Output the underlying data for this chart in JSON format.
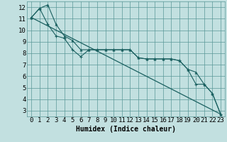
{
  "xlabel": "Humidex (Indice chaleur)",
  "bg_color": "#c2e0e0",
  "grid_color": "#5a9898",
  "line_color": "#1a6060",
  "xlim": [
    -0.5,
    23.5
  ],
  "ylim": [
    2.5,
    12.5
  ],
  "yticks": [
    3,
    4,
    5,
    6,
    7,
    8,
    9,
    10,
    11,
    12
  ],
  "xticks": [
    0,
    1,
    2,
    3,
    4,
    5,
    6,
    7,
    8,
    9,
    10,
    11,
    12,
    13,
    14,
    15,
    16,
    17,
    18,
    19,
    20,
    21,
    22,
    23
  ],
  "line1_x": [
    0,
    1,
    2,
    3,
    4,
    5,
    6,
    7,
    8,
    9,
    10,
    11,
    12,
    13,
    14,
    15,
    16,
    17,
    18,
    19,
    20,
    21,
    22,
    23
  ],
  "line1_y": [
    11.1,
    11.9,
    12.2,
    10.5,
    9.5,
    9.1,
    8.3,
    8.3,
    8.3,
    8.3,
    8.3,
    8.3,
    8.3,
    7.6,
    7.5,
    7.5,
    7.5,
    7.5,
    7.35,
    6.6,
    6.35,
    5.3,
    4.5,
    2.7
  ],
  "line2_x": [
    0,
    1,
    2,
    3,
    4,
    5,
    6,
    7,
    8,
    9,
    10,
    11,
    12,
    13,
    14,
    15,
    16,
    17,
    18,
    19,
    20,
    21,
    22,
    23
  ],
  "line2_y": [
    11.1,
    11.9,
    10.5,
    9.5,
    9.3,
    8.3,
    7.7,
    8.3,
    8.3,
    8.3,
    8.3,
    8.3,
    8.3,
    7.6,
    7.5,
    7.5,
    7.5,
    7.5,
    7.35,
    6.6,
    5.3,
    5.3,
    4.5,
    2.7
  ],
  "line3_x": [
    0,
    23
  ],
  "line3_y": [
    11.1,
    2.7
  ],
  "xlabel_fontsize": 7,
  "tick_fontsize": 6.5
}
